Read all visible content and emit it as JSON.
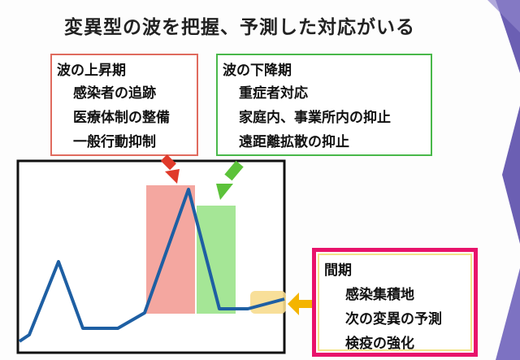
{
  "slide": {
    "title": "変異型の波を把握、予測した対応がいる",
    "rise_box": {
      "title": "波の上昇期",
      "items": [
        "感染者の追跡",
        "医療体制の整備",
        "一般行動抑制"
      ],
      "border_color": "#e06b5e"
    },
    "fall_box": {
      "title": "波の下降期",
      "items": [
        "重症者対応",
        "家庭内、事業所内の抑止",
        "遠距離拡散の抑止"
      ],
      "border_color": "#49b84a"
    },
    "gap_box": {
      "title": "間期",
      "items": [
        "感染集積地",
        "次の変異の予測",
        "検疫の強化"
      ],
      "border_color": "#e8136b"
    },
    "colors": {
      "line": "#1e5fa3",
      "rise_highlight": "#f08a80",
      "fall_highlight": "#8ee07c",
      "gap_highlight": "#f7dc8e",
      "rise_arrow": "#e03a2a",
      "fall_arrow": "#5cc23a",
      "gap_arrow": "#f4b400",
      "deco_purple": "#6b5fb3"
    }
  }
}
